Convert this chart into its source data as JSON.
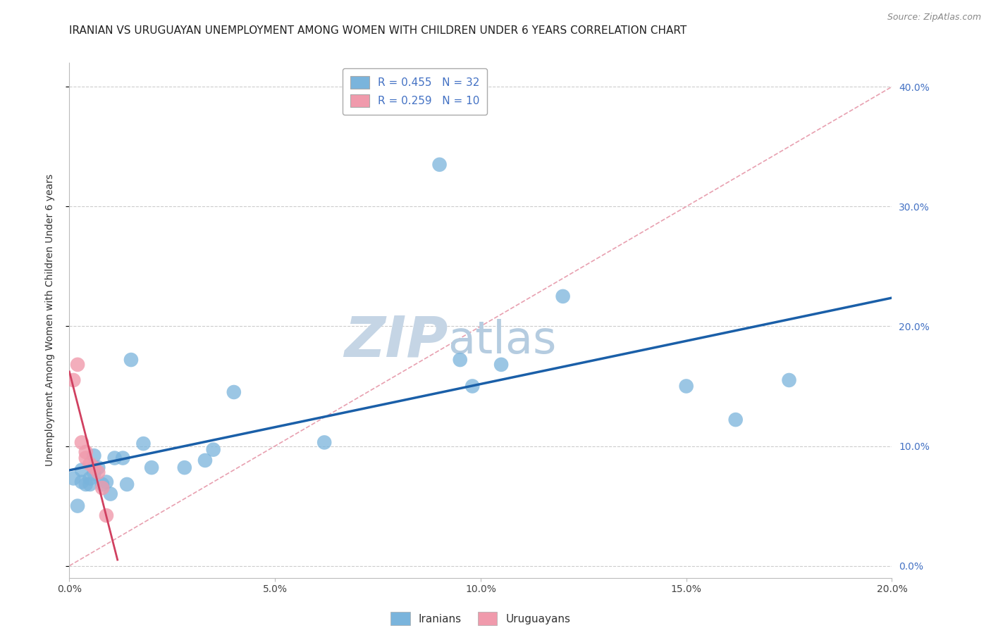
{
  "title": "IRANIAN VS URUGUAYAN UNEMPLOYMENT AMONG WOMEN WITH CHILDREN UNDER 6 YEARS CORRELATION CHART",
  "source": "Source: ZipAtlas.com",
  "ylabel": "Unemployment Among Women with Children Under 6 years",
  "R_iranian": 0.455,
  "N_iranian": 32,
  "R_uruguayan": 0.259,
  "N_uruguayan": 10,
  "iranian_color": "#7ab4dc",
  "uruguayan_color": "#f09aac",
  "regression_iranian_color": "#1a5fa8",
  "regression_uruguayan_color": "#d04060",
  "diagonal_color": "#e8a0b0",
  "xlim": [
    0.0,
    0.2
  ],
  "ylim": [
    -0.01,
    0.42
  ],
  "xticks": [
    0.0,
    0.05,
    0.1,
    0.15,
    0.2
  ],
  "yticks": [
    0.0,
    0.1,
    0.2,
    0.3,
    0.4
  ],
  "iranian_x": [
    0.001,
    0.002,
    0.003,
    0.003,
    0.004,
    0.005,
    0.005,
    0.006,
    0.006,
    0.007,
    0.008,
    0.009,
    0.01,
    0.011,
    0.013,
    0.014,
    0.015,
    0.018,
    0.02,
    0.028,
    0.033,
    0.035,
    0.04,
    0.062,
    0.09,
    0.095,
    0.098,
    0.105,
    0.12,
    0.15,
    0.162,
    0.175
  ],
  "iranian_y": [
    0.073,
    0.05,
    0.08,
    0.07,
    0.068,
    0.073,
    0.068,
    0.092,
    0.077,
    0.082,
    0.068,
    0.07,
    0.06,
    0.09,
    0.09,
    0.068,
    0.172,
    0.102,
    0.082,
    0.082,
    0.088,
    0.097,
    0.145,
    0.103,
    0.335,
    0.172,
    0.15,
    0.168,
    0.225,
    0.15,
    0.122,
    0.155
  ],
  "uruguayan_x": [
    0.001,
    0.002,
    0.003,
    0.004,
    0.004,
    0.005,
    0.006,
    0.007,
    0.008,
    0.009
  ],
  "uruguayan_y": [
    0.155,
    0.168,
    0.103,
    0.095,
    0.09,
    0.085,
    0.082,
    0.078,
    0.065,
    0.042
  ],
  "watermark_zip": "ZIP",
  "watermark_atlas": "atlas",
  "watermark_color_zip": "#c5d5e5",
  "watermark_color_atlas": "#b5cce0",
  "title_fontsize": 11,
  "axis_label_fontsize": 10,
  "tick_fontsize": 10,
  "legend_fontsize": 11,
  "source_fontsize": 9,
  "legend_text_color": "#4472c4",
  "ytick_color": "#4472c4",
  "xtick_color": "#444444",
  "grid_color": "#cccccc",
  "diagonal_slope": 2.0,
  "diagonal_intercept": 0.0
}
